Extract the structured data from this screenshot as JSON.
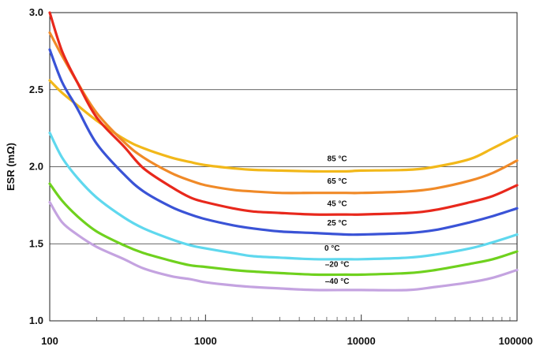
{
  "chart_data": {
    "type": "line",
    "title": "",
    "xlabel": "",
    "ylabel": "ESR (mΩ)",
    "x_scale": "log",
    "xlim": [
      100,
      100000
    ],
    "ylim": [
      1.0,
      3.0
    ],
    "x_ticks": [
      "100",
      "1000",
      "10000",
      "100000"
    ],
    "y_ticks": [
      "1.0",
      "1.5",
      "2.0",
      "2.5",
      "3.0"
    ],
    "grid": "horizontal",
    "x": [
      100,
      120,
      150,
      200,
      300,
      400,
      600,
      800,
      1000,
      1500,
      2000,
      3000,
      5000,
      8000,
      10000,
      20000,
      30000,
      50000,
      70000,
      100000
    ],
    "series": [
      {
        "name": "85 °C",
        "color": "#f2b81a",
        "values": [
          2.56,
          2.48,
          2.4,
          2.3,
          2.18,
          2.12,
          2.06,
          2.03,
          2.01,
          1.99,
          1.98,
          1.975,
          1.97,
          1.97,
          1.975,
          1.98,
          2.0,
          2.05,
          2.12,
          2.2
        ]
      },
      {
        "name": "65 °C",
        "color": "#f08a28",
        "values": [
          2.87,
          2.72,
          2.55,
          2.35,
          2.16,
          2.06,
          1.96,
          1.91,
          1.88,
          1.85,
          1.84,
          1.83,
          1.83,
          1.83,
          1.83,
          1.84,
          1.86,
          1.91,
          1.96,
          2.04
        ]
      },
      {
        "name": "45 °C",
        "color": "#e8281c",
        "values": [
          3.0,
          2.75,
          2.55,
          2.32,
          2.13,
          1.99,
          1.87,
          1.8,
          1.77,
          1.73,
          1.71,
          1.7,
          1.69,
          1.69,
          1.69,
          1.7,
          1.72,
          1.77,
          1.81,
          1.88
        ]
      },
      {
        "name": "25 °C",
        "color": "#3a53d6",
        "values": [
          2.76,
          2.55,
          2.38,
          2.15,
          1.95,
          1.84,
          1.74,
          1.69,
          1.66,
          1.62,
          1.6,
          1.58,
          1.57,
          1.56,
          1.56,
          1.57,
          1.59,
          1.64,
          1.68,
          1.73
        ]
      },
      {
        "name": "0 °C",
        "color": "#5fd8ee",
        "values": [
          2.22,
          2.06,
          1.93,
          1.8,
          1.67,
          1.6,
          1.53,
          1.49,
          1.47,
          1.44,
          1.42,
          1.41,
          1.4,
          1.4,
          1.4,
          1.41,
          1.43,
          1.47,
          1.51,
          1.56
        ]
      },
      {
        "name": "–20 °C",
        "color": "#6fd11e",
        "values": [
          1.89,
          1.78,
          1.68,
          1.58,
          1.49,
          1.44,
          1.39,
          1.36,
          1.35,
          1.33,
          1.32,
          1.31,
          1.3,
          1.3,
          1.3,
          1.31,
          1.33,
          1.37,
          1.4,
          1.45
        ]
      },
      {
        "name": "–40 °C",
        "color": "#c4a3e0",
        "values": [
          1.77,
          1.64,
          1.56,
          1.48,
          1.4,
          1.34,
          1.29,
          1.27,
          1.25,
          1.23,
          1.22,
          1.21,
          1.2,
          1.2,
          1.2,
          1.2,
          1.22,
          1.25,
          1.28,
          1.33
        ]
      }
    ],
    "labels": [
      {
        "text": "85 °C",
        "x": 7000,
        "y": 2.035
      },
      {
        "text": "65 °C",
        "x": 7000,
        "y": 1.89
      },
      {
        "text": "45 °C",
        "x": 7000,
        "y": 1.745
      },
      {
        "text": "25 °C",
        "x": 7000,
        "y": 1.62
      },
      {
        "text": "0 °C",
        "x": 6500,
        "y": 1.455
      },
      {
        "text": "–20 °C",
        "x": 7000,
        "y": 1.35
      },
      {
        "text": "–40 °C",
        "x": 7000,
        "y": 1.24
      }
    ]
  }
}
